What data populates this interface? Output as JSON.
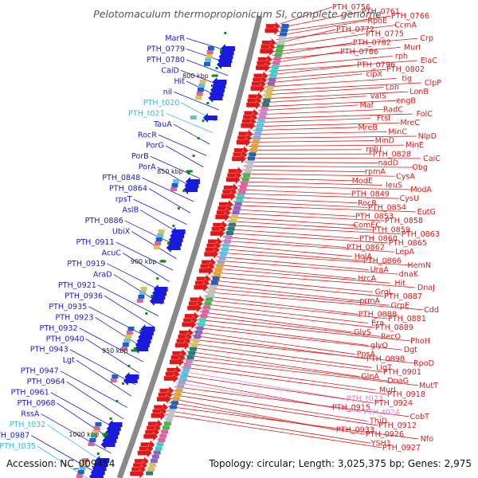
{
  "title": "Pelotomaculum thermopropionicum SI, complete genome",
  "accession": "Accession: NC_009454",
  "topology": "Topology: circular; Length: 3,025,375 bp; Genes: 2,975",
  "colors": {
    "reverse_gene": "#1a1adc",
    "forward_gene": "#e01818",
    "trna": "#2cc0e0",
    "rrna": "#e080d0",
    "backbone": "#8a8a8a",
    "kbp_tick": "#138a13"
  },
  "kbp_ticks": [
    "800 kbp",
    "850 kbp",
    "900 kbp",
    "950 kbp",
    "1000 kbp"
  ],
  "left_labels": [
    {
      "text": "MarR",
      "type": "gene"
    },
    {
      "text": "PTH_0779",
      "type": "gene"
    },
    {
      "text": "PTH_0780",
      "type": "gene"
    },
    {
      "text": "CaiD",
      "type": "gene"
    },
    {
      "text": "Hit",
      "type": "gene"
    },
    {
      "text": "nil",
      "type": "gene"
    },
    {
      "text": "PTH_t020",
      "type": "trna"
    },
    {
      "text": "PTH_t021",
      "type": "trna"
    },
    {
      "text": "TauA",
      "type": "gene"
    },
    {
      "text": "RocR",
      "type": "gene"
    },
    {
      "text": "PorG",
      "type": "gene"
    },
    {
      "text": "PorB",
      "type": "gene"
    },
    {
      "text": "PorA",
      "type": "gene"
    },
    {
      "text": "PTH_0848",
      "type": "gene"
    },
    {
      "text": "PTH_0864",
      "type": "gene"
    },
    {
      "text": "rpsT",
      "type": "gene"
    },
    {
      "text": "AslB",
      "type": "gene"
    },
    {
      "text": "PTH_0886",
      "type": "gene"
    },
    {
      "text": "UbiX",
      "type": "gene"
    },
    {
      "text": "PTH_0911",
      "type": "gene"
    },
    {
      "text": "AcuC",
      "type": "gene"
    },
    {
      "text": "PTH_0919",
      "type": "gene"
    },
    {
      "text": "AraD",
      "type": "gene"
    },
    {
      "text": "PTH_0921",
      "type": "gene"
    },
    {
      "text": "PTH_0936",
      "type": "gene"
    },
    {
      "text": "PTH_0935",
      "type": "gene"
    },
    {
      "text": "PTH_0923",
      "type": "gene"
    },
    {
      "text": "PTH_0932",
      "type": "gene"
    },
    {
      "text": "PTH_0940",
      "type": "gene"
    },
    {
      "text": "PTH_0943",
      "type": "gene"
    },
    {
      "text": "Lgt",
      "type": "gene"
    },
    {
      "text": "PTH_0947",
      "type": "gene"
    },
    {
      "text": "PTH_0964",
      "type": "gene"
    },
    {
      "text": "PTH_0961",
      "type": "gene"
    },
    {
      "text": "PTH_0968",
      "type": "gene"
    },
    {
      "text": "RssA",
      "type": "gene"
    },
    {
      "text": "PTH_t032",
      "type": "trna"
    },
    {
      "text": "PTH_0987",
      "type": "gene"
    },
    {
      "text": "PTH_t035",
      "type": "trna"
    }
  ],
  "right_labels": [
    {
      "text": "PTH_0756",
      "type": "gene"
    },
    {
      "text": "PTH_0761",
      "type": "gene"
    },
    {
      "text": "PTH_0766",
      "type": "gene"
    },
    {
      "text": "RpoE",
      "type": "gene"
    },
    {
      "text": "CcmA",
      "type": "gene"
    },
    {
      "text": "PTH_0772",
      "type": "gene"
    },
    {
      "text": "PTH_0775",
      "type": "gene"
    },
    {
      "text": "Crp",
      "type": "gene"
    },
    {
      "text": "PTH_0782",
      "type": "gene"
    },
    {
      "text": "MurI",
      "type": "gene"
    },
    {
      "text": "PTH_0786",
      "type": "gene"
    },
    {
      "text": "rph",
      "type": "gene"
    },
    {
      "text": "ElaC",
      "type": "gene"
    },
    {
      "text": "PTH_0796",
      "type": "gene"
    },
    {
      "text": "PTH_0802",
      "type": "gene"
    },
    {
      "text": "clpX",
      "type": "gene"
    },
    {
      "text": "tig",
      "type": "gene"
    },
    {
      "text": "ClpP",
      "type": "gene"
    },
    {
      "text": "Lon",
      "type": "gene"
    },
    {
      "text": "LonB",
      "type": "gene"
    },
    {
      "text": "valS",
      "type": "gene"
    },
    {
      "text": "engB",
      "type": "gene"
    },
    {
      "text": "Maf",
      "type": "gene"
    },
    {
      "text": "RadC",
      "type": "gene"
    },
    {
      "text": "FolC",
      "type": "gene"
    },
    {
      "text": "FtsI",
      "type": "gene"
    },
    {
      "text": "MreC",
      "type": "gene"
    },
    {
      "text": "MreB",
      "type": "gene"
    },
    {
      "text": "MinC",
      "type": "gene"
    },
    {
      "text": "NlpD",
      "type": "gene"
    },
    {
      "text": "MinD",
      "type": "gene"
    },
    {
      "text": "MinE",
      "type": "gene"
    },
    {
      "text": "rplU",
      "type": "gene"
    },
    {
      "text": "PTH_0828",
      "type": "gene"
    },
    {
      "text": "CaiC",
      "type": "gene"
    },
    {
      "text": "nadD",
      "type": "gene"
    },
    {
      "text": "Obg",
      "type": "gene"
    },
    {
      "text": "rpmA",
      "type": "gene"
    },
    {
      "text": "CysA",
      "type": "gene"
    },
    {
      "text": "ModE",
      "type": "gene"
    },
    {
      "text": "leuS",
      "type": "gene"
    },
    {
      "text": "ModA",
      "type": "gene"
    },
    {
      "text": "PTH_0849",
      "type": "gene"
    },
    {
      "text": "CysU",
      "type": "gene"
    },
    {
      "text": "RocR",
      "type": "gene"
    },
    {
      "text": "PTH_0854",
      "type": "gene"
    },
    {
      "text": "EutG",
      "type": "gene"
    },
    {
      "text": "PTH_0853",
      "type": "gene"
    },
    {
      "text": "PTH_0858",
      "type": "gene"
    },
    {
      "text": "ComEC",
      "type": "gene"
    },
    {
      "text": "PTH_0859",
      "type": "gene"
    },
    {
      "text": "PTH_0863",
      "type": "gene"
    },
    {
      "text": "PTH_0860",
      "type": "gene"
    },
    {
      "text": "PTH_0865",
      "type": "gene"
    },
    {
      "text": "PTH_0862",
      "type": "gene"
    },
    {
      "text": "LepA",
      "type": "gene"
    },
    {
      "text": "HolA",
      "type": "gene"
    },
    {
      "text": "PTH_0866",
      "type": "gene"
    },
    {
      "text": "HemN",
      "type": "gene"
    },
    {
      "text": "UraA",
      "type": "gene"
    },
    {
      "text": "dnaK",
      "type": "gene"
    },
    {
      "text": "HrcA",
      "type": "gene"
    },
    {
      "text": "Hit",
      "type": "gene"
    },
    {
      "text": "DnaJ",
      "type": "gene"
    },
    {
      "text": "GroL",
      "type": "gene"
    },
    {
      "text": "PTH_0887",
      "type": "gene"
    },
    {
      "text": "prmA",
      "type": "gene"
    },
    {
      "text": "GrpE",
      "type": "gene"
    },
    {
      "text": "Cdd",
      "type": "gene"
    },
    {
      "text": "PTH_0888",
      "type": "gene"
    },
    {
      "text": "PTH_0881",
      "type": "gene"
    },
    {
      "text": "Era",
      "type": "gene"
    },
    {
      "text": "PTH_0889",
      "type": "gene"
    },
    {
      "text": "GlyS",
      "type": "gene"
    },
    {
      "text": "RecO",
      "type": "gene"
    },
    {
      "text": "PhoH",
      "type": "gene"
    },
    {
      "text": "glyQ",
      "type": "gene"
    },
    {
      "text": "Dgt",
      "type": "gene"
    },
    {
      "text": "PpsA",
      "type": "gene"
    },
    {
      "text": "PTH_0898",
      "type": "gene"
    },
    {
      "text": "RpoD",
      "type": "gene"
    },
    {
      "text": "LigT",
      "type": "gene"
    },
    {
      "text": "PTH_0901",
      "type": "gene"
    },
    {
      "text": "GlnA",
      "type": "gene"
    },
    {
      "text": "DnaG",
      "type": "gene"
    },
    {
      "text": "MutT",
      "type": "gene"
    },
    {
      "text": "MurI",
      "type": "gene"
    },
    {
      "text": "PTH_0918",
      "type": "gene"
    },
    {
      "text": "PTH_t023",
      "type": "rrna"
    },
    {
      "text": "PTH_0924",
      "type": "gene"
    },
    {
      "text": "PTH_0915",
      "type": "gene"
    },
    {
      "text": "PTH_t024",
      "type": "rrna"
    },
    {
      "text": "CobT",
      "type": "gene"
    },
    {
      "text": "ThiD",
      "type": "gene"
    },
    {
      "text": "PTH_0912",
      "type": "gene"
    },
    {
      "text": "PTH_0933",
      "type": "gene"
    },
    {
      "text": "PTH_0926",
      "type": "gene"
    },
    {
      "text": "Nfo",
      "type": "gene"
    },
    {
      "text": "YSH1",
      "type": "gene"
    },
    {
      "text": "PTH_0927",
      "type": "gene"
    }
  ]
}
